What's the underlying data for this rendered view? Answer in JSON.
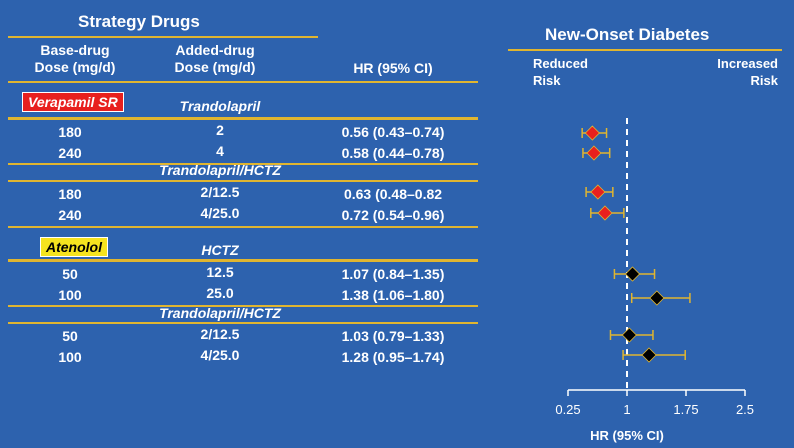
{
  "left": {
    "title": "Strategy Drugs",
    "col_base": [
      "Base-drug",
      "Dose (mg/d)"
    ],
    "col_added": [
      "Added-drug",
      "Dose (mg/d)"
    ],
    "col_hr": "HR (95% CI)",
    "group1_label": "Verapamil SR",
    "group1_label_color": "#e8201e",
    "group2_label": "Atenolol",
    "group2_label_color": "#f5e31f",
    "subgroups": [
      "Trandolapril",
      "Trandolapril/HCTZ",
      "HCTZ",
      "Trandolapril/HCTZ"
    ],
    "rows": [
      {
        "base": "180",
        "added": "2",
        "hr": "0.56 (0.43–0.74)"
      },
      {
        "base": "240",
        "added": "4",
        "hr": "0.58 (0.44–0.78)"
      },
      {
        "base": "180",
        "added": "2/12.5",
        "hr": "0.63 (0.48–0.82"
      },
      {
        "base": "240",
        "added": "4/25.0",
        "hr": "0.72 (0.54–0.96)"
      },
      {
        "base": "50",
        "added": "12.5",
        "hr": "1.07 (0.84–1.35)"
      },
      {
        "base": "100",
        "added": "25.0",
        "hr": "1.38 (1.06–1.80)"
      },
      {
        "base": "50",
        "added": "2/12.5",
        "hr": "1.03 (0.79–1.33)"
      },
      {
        "base": "100",
        "added": "4/25.0",
        "hr": "1.28 (0.95–1.74)"
      }
    ]
  },
  "chart_data": {
    "type": "scatter",
    "title": "New-Onset Diabetes",
    "left_annotation": "Reduced Risk",
    "right_annotation": "Increased Risk",
    "xlabel": "HR (95% CI)",
    "xlim": [
      0.25,
      2.5
    ],
    "xticks": [
      0.25,
      1,
      1.75,
      2.5
    ],
    "xtick_labels": [
      "0.25",
      "1",
      "1.75",
      "2.5"
    ],
    "reference_line": 1,
    "marker_colors": [
      "#e8201e",
      "#e8201e",
      "#e8201e",
      "#e8201e",
      "#000000",
      "#000000",
      "#000000",
      "#000000"
    ],
    "whisker_color": "#e0b530",
    "points": [
      {
        "hr": 0.56,
        "lo": 0.43,
        "hi": 0.74
      },
      {
        "hr": 0.58,
        "lo": 0.44,
        "hi": 0.78
      },
      {
        "hr": 0.63,
        "lo": 0.48,
        "hi": 0.82
      },
      {
        "hr": 0.72,
        "lo": 0.54,
        "hi": 0.96
      },
      {
        "hr": 1.07,
        "lo": 0.84,
        "hi": 1.35
      },
      {
        "hr": 1.38,
        "lo": 1.06,
        "hi": 1.8
      },
      {
        "hr": 1.03,
        "lo": 0.79,
        "hi": 1.33
      },
      {
        "hr": 1.28,
        "lo": 0.95,
        "hi": 1.74
      }
    ]
  }
}
